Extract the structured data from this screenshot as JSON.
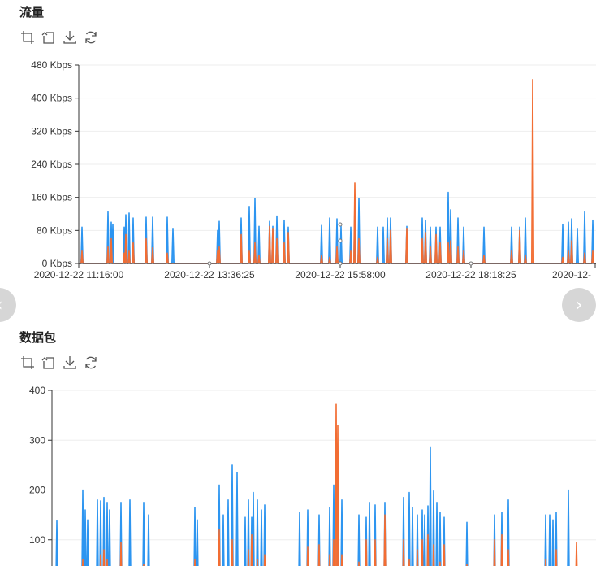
{
  "sections": {
    "traffic": {
      "title": "流量"
    },
    "packets": {
      "title": "数据包"
    }
  },
  "toolbox": [
    "crop-icon",
    "undo-icon",
    "download-icon",
    "refresh-icon"
  ],
  "nav": {
    "prev": "‹",
    "next": "›"
  },
  "colors": {
    "series1": "#2d95f0",
    "series2": "#f26d33",
    "grid": "#eeeeee",
    "axis": "#333333"
  },
  "chart_data": [
    {
      "type": "line",
      "title": "流量",
      "ylabel": "",
      "y_unit": " Kbps",
      "ylim": [
        0,
        480
      ],
      "yticks": [
        0,
        80,
        160,
        240,
        320,
        400,
        480
      ],
      "xticks": [
        "2020-12-22 11:16:00",
        "2020-12-22 13:36:25",
        "2020-12-22 15:58:00",
        "2020-12-22 18:18:25",
        "2020-12-"
      ],
      "grid": true,
      "series": [
        {
          "color": "#2d95f0",
          "spikes": [
            [
              101,
              88
            ],
            [
              133,
              125
            ],
            [
              137,
              100
            ],
            [
              139,
              95
            ],
            [
              153,
              88
            ],
            [
              155,
              118
            ],
            [
              159,
              122
            ],
            [
              164,
              110
            ],
            [
              180,
              112
            ],
            [
              188,
              112
            ],
            [
              206,
              112
            ],
            [
              213,
              85
            ],
            [
              268,
              80
            ],
            [
              270,
              102
            ],
            [
              297,
              110
            ],
            [
              307,
              138
            ],
            [
              314,
              158
            ],
            [
              319,
              90
            ],
            [
              332,
              102
            ],
            [
              336,
              90
            ],
            [
              341,
              115
            ],
            [
              350,
              105
            ],
            [
              355,
              88
            ],
            [
              396,
              92
            ],
            [
              406,
              110
            ],
            [
              415,
              108
            ],
            [
              420,
              90
            ],
            [
              432,
              88
            ],
            [
              437,
              150
            ],
            [
              442,
              158
            ],
            [
              465,
              88
            ],
            [
              472,
              88
            ],
            [
              477,
              110
            ],
            [
              481,
              110
            ],
            [
              501,
              90
            ],
            [
              520,
              110
            ],
            [
              524,
              105
            ],
            [
              530,
              88
            ],
            [
              537,
              88
            ],
            [
              542,
              88
            ],
            [
              552,
              172
            ],
            [
              555,
              130
            ],
            [
              564,
              110
            ],
            [
              571,
              88
            ],
            [
              596,
              88
            ],
            [
              630,
              88
            ],
            [
              640,
              88
            ],
            [
              647,
              110
            ],
            [
              693,
              95
            ],
            [
              700,
              100
            ],
            [
              704,
              108
            ],
            [
              711,
              85
            ],
            [
              720,
              125
            ],
            [
              730,
              105
            ]
          ]
        },
        {
          "color": "#f26d33",
          "spikes": [
            [
              101,
              30
            ],
            [
              133,
              40
            ],
            [
              137,
              60
            ],
            [
              153,
              25
            ],
            [
              155,
              70
            ],
            [
              159,
              30
            ],
            [
              164,
              50
            ],
            [
              180,
              60
            ],
            [
              188,
              38
            ],
            [
              206,
              25
            ],
            [
              268,
              30
            ],
            [
              270,
              40
            ],
            [
              297,
              70
            ],
            [
              307,
              30
            ],
            [
              314,
              50
            ],
            [
              319,
              20
            ],
            [
              332,
              90
            ],
            [
              336,
              85
            ],
            [
              341,
              60
            ],
            [
              350,
              50
            ],
            [
              355,
              75
            ],
            [
              396,
              20
            ],
            [
              406,
              15
            ],
            [
              415,
              40
            ],
            [
              432,
              30
            ],
            [
              437,
              195
            ],
            [
              442,
              60
            ],
            [
              465,
              15
            ],
            [
              477,
              60
            ],
            [
              481,
              80
            ],
            [
              501,
              85
            ],
            [
              520,
              60
            ],
            [
              524,
              75
            ],
            [
              530,
              40
            ],
            [
              537,
              70
            ],
            [
              542,
              50
            ],
            [
              552,
              50
            ],
            [
              555,
              55
            ],
            [
              564,
              40
            ],
            [
              571,
              30
            ],
            [
              596,
              20
            ],
            [
              630,
              30
            ],
            [
              640,
              80
            ],
            [
              647,
              20
            ],
            [
              656,
              445
            ],
            [
              693,
              15
            ],
            [
              700,
              30
            ],
            [
              704,
              55
            ],
            [
              720,
              25
            ],
            [
              730,
              30
            ]
          ]
        }
      ]
    },
    {
      "type": "line",
      "title": "数据包",
      "ylabel": "",
      "y_unit": "",
      "ylim": [
        0,
        400
      ],
      "yticks": [
        100,
        200,
        300,
        400
      ],
      "grid": true,
      "series": [
        {
          "color": "#2d95f0",
          "spikes": [
            [
              70,
              138
            ],
            [
              102,
              200
            ],
            [
              105,
              160
            ],
            [
              108,
              140
            ],
            [
              120,
              180
            ],
            [
              124,
              178
            ],
            [
              128,
              185
            ],
            [
              132,
              175
            ],
            [
              135,
              160
            ],
            [
              149,
              175
            ],
            [
              160,
              180
            ],
            [
              177,
              175
            ],
            [
              183,
              150
            ],
            [
              240,
              165
            ],
            [
              243,
              140
            ],
            [
              270,
              210
            ],
            [
              275,
              150
            ],
            [
              281,
              180
            ],
            [
              286,
              250
            ],
            [
              292,
              235
            ],
            [
              302,
              145
            ],
            [
              306,
              180
            ],
            [
              310,
              145
            ],
            [
              312,
              195
            ],
            [
              317,
              180
            ],
            [
              322,
              160
            ],
            [
              326,
              170
            ],
            [
              369,
              155
            ],
            [
              379,
              160
            ],
            [
              393,
              150
            ],
            [
              406,
              165
            ],
            [
              411,
              210
            ],
            [
              416,
              220
            ],
            [
              421,
              180
            ],
            [
              442,
              150
            ],
            [
              451,
              145
            ],
            [
              455,
              175
            ],
            [
              462,
              170
            ],
            [
              474,
              175
            ],
            [
              497,
              185
            ],
            [
              504,
              195
            ],
            [
              508,
              165
            ],
            [
              514,
              150
            ],
            [
              520,
              160
            ],
            [
              523,
              150
            ],
            [
              527,
              168
            ],
            [
              530,
              285
            ],
            [
              534,
              198
            ],
            [
              538,
              175
            ],
            [
              542,
              155
            ],
            [
              547,
              145
            ],
            [
              575,
              135
            ],
            [
              609,
              150
            ],
            [
              618,
              155
            ],
            [
              626,
              180
            ],
            [
              672,
              150
            ],
            [
              677,
              150
            ],
            [
              681,
              140
            ],
            [
              685,
              155
            ],
            [
              700,
              200
            ]
          ]
        },
        {
          "color": "#f26d33",
          "spikes": [
            [
              102,
              60
            ],
            [
              105,
              45
            ],
            [
              124,
              70
            ],
            [
              128,
              80
            ],
            [
              132,
              60
            ],
            [
              149,
              95
            ],
            [
              160,
              40
            ],
            [
              177,
              50
            ],
            [
              240,
              60
            ],
            [
              270,
              120
            ],
            [
              286,
              100
            ],
            [
              306,
              80
            ],
            [
              310,
              110
            ],
            [
              317,
              60
            ],
            [
              326,
              70
            ],
            [
              379,
              85
            ],
            [
              393,
              90
            ],
            [
              406,
              70
            ],
            [
              411,
              100
            ],
            [
              414,
              372
            ],
            [
              416,
              330
            ],
            [
              421,
              70
            ],
            [
              442,
              55
            ],
            [
              451,
              100
            ],
            [
              462,
              100
            ],
            [
              474,
              150
            ],
            [
              497,
              100
            ],
            [
              504,
              60
            ],
            [
              514,
              80
            ],
            [
              520,
              100
            ],
            [
              527,
              110
            ],
            [
              534,
              90
            ],
            [
              542,
              55
            ],
            [
              547,
              90
            ],
            [
              575,
              50
            ],
            [
              609,
              100
            ],
            [
              618,
              110
            ],
            [
              626,
              80
            ],
            [
              672,
              60
            ],
            [
              685,
              80
            ],
            [
              710,
              95
            ]
          ]
        }
      ]
    }
  ]
}
